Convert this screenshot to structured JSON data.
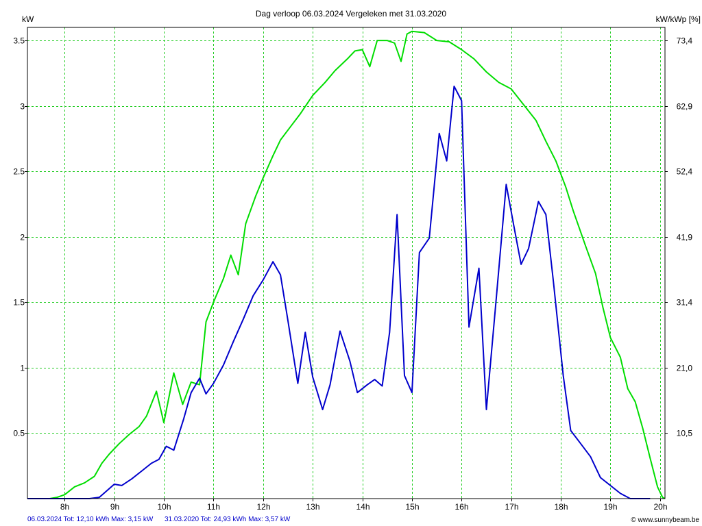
{
  "chart_data": {
    "type": "line",
    "title": "Dag  verloop 06.03.2024   Vergeleken met 31.03.2020",
    "ylabel_left": "kW",
    "ylabel_right": "kW/kWp [%]",
    "x_range_hours": [
      7.25,
      20.1
    ],
    "ylim": [
      0,
      3.6
    ],
    "x_ticks": [
      {
        "hour": 8,
        "label": "8h"
      },
      {
        "hour": 9,
        "label": "9h"
      },
      {
        "hour": 10,
        "label": "10h"
      },
      {
        "hour": 11,
        "label": "11h"
      },
      {
        "hour": 12,
        "label": "12h"
      },
      {
        "hour": 13,
        "label": "13h"
      },
      {
        "hour": 14,
        "label": "14h"
      },
      {
        "hour": 15,
        "label": "15h"
      },
      {
        "hour": 16,
        "label": "16h"
      },
      {
        "hour": 17,
        "label": "17h"
      },
      {
        "hour": 18,
        "label": "18h"
      },
      {
        "hour": 19,
        "label": "19h"
      },
      {
        "hour": 20,
        "label": "20h"
      }
    ],
    "y_ticks_left": [
      {
        "value": 0.5,
        "label": "0.5"
      },
      {
        "value": 1,
        "label": "1"
      },
      {
        "value": 1.5,
        "label": "1.5"
      },
      {
        "value": 2,
        "label": "2"
      },
      {
        "value": 2.5,
        "label": "2.5"
      },
      {
        "value": 3,
        "label": "3"
      },
      {
        "value": 3.5,
        "label": "3.5"
      }
    ],
    "y_ticks_right": [
      {
        "value": 0.5,
        "label": "10,5"
      },
      {
        "value": 1,
        "label": "21,0"
      },
      {
        "value": 1.5,
        "label": "31,4"
      },
      {
        "value": 2,
        "label": "41,9"
      },
      {
        "value": 2.5,
        "label": "52,4"
      },
      {
        "value": 3,
        "label": "62,9"
      },
      {
        "value": 3.5,
        "label": "73,4"
      }
    ],
    "grid": true,
    "legend_position": "bottom-left",
    "series": [
      {
        "name": "31.03.2020",
        "color": "#00dd00",
        "points": [
          [
            7.25,
            0
          ],
          [
            7.5,
            0
          ],
          [
            7.7,
            0
          ],
          [
            7.85,
            0.01
          ],
          [
            8.0,
            0.03
          ],
          [
            8.2,
            0.09
          ],
          [
            8.4,
            0.12
          ],
          [
            8.6,
            0.17
          ],
          [
            8.75,
            0.27
          ],
          [
            8.9,
            0.34
          ],
          [
            9.1,
            0.42
          ],
          [
            9.3,
            0.49
          ],
          [
            9.5,
            0.55
          ],
          [
            9.65,
            0.63
          ],
          [
            9.85,
            0.82
          ],
          [
            10.0,
            0.58
          ],
          [
            10.2,
            0.96
          ],
          [
            10.38,
            0.72
          ],
          [
            10.55,
            0.89
          ],
          [
            10.72,
            0.87
          ],
          [
            10.85,
            1.35
          ],
          [
            11.0,
            1.5
          ],
          [
            11.2,
            1.68
          ],
          [
            11.35,
            1.86
          ],
          [
            11.5,
            1.71
          ],
          [
            11.65,
            2.1
          ],
          [
            11.85,
            2.31
          ],
          [
            12.0,
            2.45
          ],
          [
            12.2,
            2.62
          ],
          [
            12.35,
            2.74
          ],
          [
            12.55,
            2.84
          ],
          [
            12.75,
            2.94
          ],
          [
            13.0,
            3.08
          ],
          [
            13.25,
            3.18
          ],
          [
            13.45,
            3.27
          ],
          [
            13.7,
            3.36
          ],
          [
            13.85,
            3.42
          ],
          [
            14.0,
            3.43
          ],
          [
            14.15,
            3.3
          ],
          [
            14.3,
            3.5
          ],
          [
            14.5,
            3.5
          ],
          [
            14.65,
            3.48
          ],
          [
            14.78,
            3.34
          ],
          [
            14.9,
            3.55
          ],
          [
            15.0,
            3.57
          ],
          [
            15.25,
            3.56
          ],
          [
            15.5,
            3.5
          ],
          [
            15.75,
            3.49
          ],
          [
            16.0,
            3.43
          ],
          [
            16.25,
            3.36
          ],
          [
            16.5,
            3.26
          ],
          [
            16.75,
            3.18
          ],
          [
            17.0,
            3.13
          ],
          [
            17.25,
            3.01
          ],
          [
            17.5,
            2.89
          ],
          [
            17.7,
            2.73
          ],
          [
            17.9,
            2.58
          ],
          [
            18.1,
            2.38
          ],
          [
            18.25,
            2.2
          ],
          [
            18.5,
            1.93
          ],
          [
            18.7,
            1.72
          ],
          [
            18.85,
            1.46
          ],
          [
            19.0,
            1.23
          ],
          [
            19.2,
            1.08
          ],
          [
            19.35,
            0.84
          ],
          [
            19.5,
            0.74
          ],
          [
            19.65,
            0.54
          ],
          [
            19.8,
            0.31
          ],
          [
            19.95,
            0.09
          ],
          [
            20.05,
            0.01
          ],
          [
            20.1,
            0
          ]
        ]
      },
      {
        "name": "06.03.2024",
        "color": "#0000cc",
        "points": [
          [
            7.25,
            0
          ],
          [
            7.6,
            0
          ],
          [
            8.0,
            0
          ],
          [
            8.3,
            0
          ],
          [
            8.5,
            0
          ],
          [
            8.7,
            0.01
          ],
          [
            9.0,
            0.11
          ],
          [
            9.15,
            0.1
          ],
          [
            9.35,
            0.15
          ],
          [
            9.55,
            0.21
          ],
          [
            9.75,
            0.27
          ],
          [
            9.9,
            0.3
          ],
          [
            10.05,
            0.4
          ],
          [
            10.2,
            0.37
          ],
          [
            10.4,
            0.61
          ],
          [
            10.55,
            0.81
          ],
          [
            10.72,
            0.92
          ],
          [
            10.85,
            0.8
          ],
          [
            11.0,
            0.88
          ],
          [
            11.2,
            1.02
          ],
          [
            11.4,
            1.2
          ],
          [
            11.6,
            1.37
          ],
          [
            11.8,
            1.55
          ],
          [
            12.0,
            1.67
          ],
          [
            12.2,
            1.81
          ],
          [
            12.35,
            1.71
          ],
          [
            12.5,
            1.36
          ],
          [
            12.7,
            0.88
          ],
          [
            12.85,
            1.27
          ],
          [
            13.0,
            0.93
          ],
          [
            13.2,
            0.68
          ],
          [
            13.35,
            0.87
          ],
          [
            13.55,
            1.28
          ],
          [
            13.75,
            1.05
          ],
          [
            13.9,
            0.81
          ],
          [
            14.1,
            0.87
          ],
          [
            14.25,
            0.91
          ],
          [
            14.4,
            0.86
          ],
          [
            14.55,
            1.27
          ],
          [
            14.7,
            2.17
          ],
          [
            14.85,
            0.94
          ],
          [
            15.0,
            0.81
          ],
          [
            15.15,
            1.88
          ],
          [
            15.35,
            1.99
          ],
          [
            15.55,
            2.79
          ],
          [
            15.7,
            2.58
          ],
          [
            15.85,
            3.15
          ],
          [
            16.0,
            3.04
          ],
          [
            16.15,
            1.31
          ],
          [
            16.35,
            1.76
          ],
          [
            16.5,
            0.68
          ],
          [
            16.7,
            1.53
          ],
          [
            16.9,
            2.4
          ],
          [
            17.05,
            2.09
          ],
          [
            17.2,
            1.79
          ],
          [
            17.35,
            1.91
          ],
          [
            17.55,
            2.27
          ],
          [
            17.7,
            2.17
          ],
          [
            17.85,
            1.66
          ],
          [
            18.05,
            0.94
          ],
          [
            18.2,
            0.52
          ],
          [
            18.4,
            0.42
          ],
          [
            18.6,
            0.32
          ],
          [
            18.8,
            0.16
          ],
          [
            19.0,
            0.1
          ],
          [
            19.2,
            0.04
          ],
          [
            19.4,
            0
          ],
          [
            19.6,
            0
          ],
          [
            19.8,
            0
          ]
        ]
      }
    ]
  },
  "footer": {
    "summary_2024": "06.03.2024 Tot: 12,10 kWh Max: 3,15 kW",
    "summary_2020": "31.03.2020 Tot: 24,93 kWh Max: 3,57 kW",
    "copyright": "© www.sunnybeam.be"
  }
}
